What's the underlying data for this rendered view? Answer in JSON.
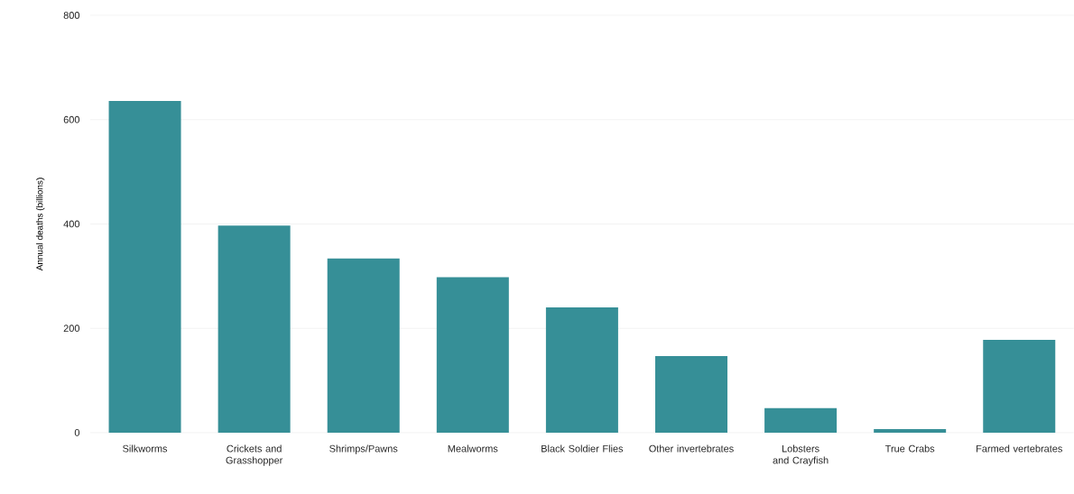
{
  "chart_data": {
    "type": "bar",
    "ylabel": "Annual deaths (billions)",
    "categories": [
      "Silkworms",
      "Crickets and Grasshopper",
      "Shrimps/Pawns",
      "Mealworms",
      "Black Soldier Flies",
      "Other invertebrates",
      "Lobsters and Crayfish",
      "True Crabs",
      "Farmed vertebrates"
    ],
    "values": [
      636,
      397,
      334,
      298,
      240,
      147,
      47,
      7,
      178
    ],
    "color": "#368f97",
    "ylim": [
      0,
      800
    ],
    "yticks": [
      0,
      200,
      400,
      600,
      800
    ],
    "grid": "y"
  }
}
